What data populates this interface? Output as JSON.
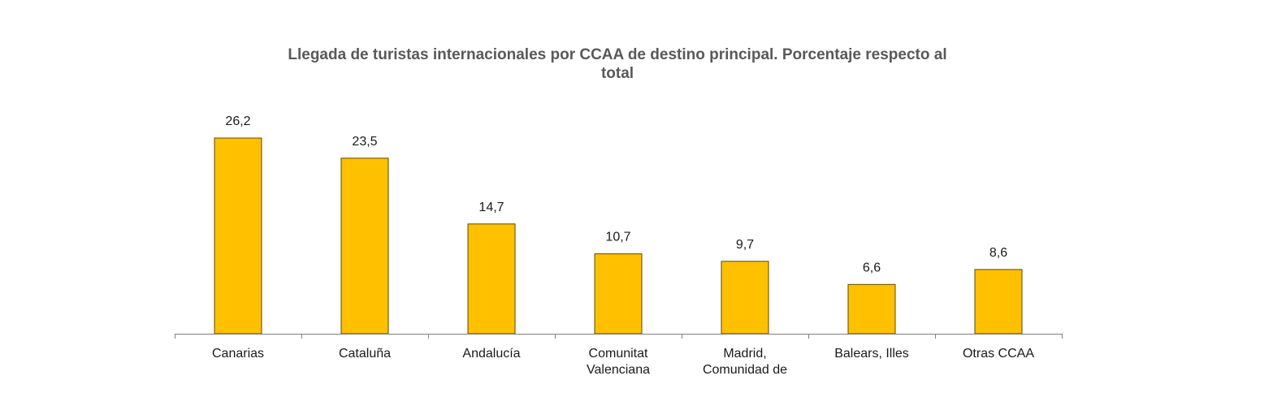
{
  "chart_data": {
    "type": "bar",
    "title_lines": [
      "Llegada de turistas internacionales por CCAA de destino principal. Porcentaje respecto al",
      "total"
    ],
    "categories": [
      [
        "Canarias"
      ],
      [
        "Cataluña"
      ],
      [
        "Andalucía"
      ],
      [
        "Comunitat",
        "Valenciana"
      ],
      [
        "Madrid,",
        "Comunidad de"
      ],
      [
        "Balears, Illes"
      ],
      [
        "Otras CCAA"
      ]
    ],
    "values": [
      26.2,
      23.5,
      14.7,
      10.7,
      9.7,
      6.6,
      8.6
    ],
    "value_labels": [
      "26,2",
      "23,5",
      "14,7",
      "10,7",
      "9,7",
      "6,6",
      "8,6"
    ],
    "xlabel": "",
    "ylabel": "",
    "ylim": [
      0,
      30
    ],
    "grid": false,
    "legend": "none",
    "colors": {
      "bar_fill": "#FFC000",
      "bar_stroke": "#5a4a00",
      "axis": "#808080"
    }
  }
}
